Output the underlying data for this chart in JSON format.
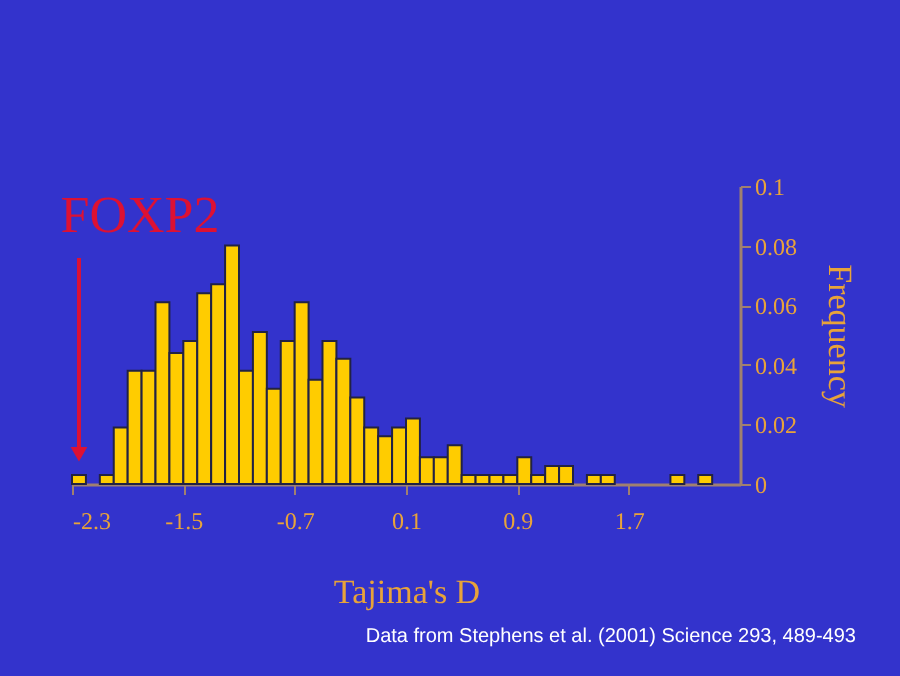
{
  "chart_data": {
    "type": "histogram",
    "bins": [
      -2.3,
      -2.2,
      -2.1,
      -2.0,
      -1.9,
      -1.8,
      -1.7,
      -1.6,
      -1.5,
      -1.4,
      -1.3,
      -1.2,
      -1.1,
      -1.0,
      -0.9,
      -0.8,
      -0.7,
      -0.6,
      -0.5,
      -0.4,
      -0.3,
      -0.2,
      -0.1,
      0.0,
      0.1,
      0.2,
      0.3,
      0.4,
      0.5,
      0.6,
      0.7,
      0.8,
      0.9,
      1.0,
      1.1,
      1.2,
      1.3,
      1.4,
      1.5,
      1.6,
      1.7,
      1.8,
      1.9,
      2.0,
      2.1,
      2.2,
      2.3
    ],
    "values": [
      0.003,
      0,
      0.003,
      0.019,
      0.038,
      0.038,
      0.061,
      0.044,
      0.048,
      0.064,
      0.067,
      0.08,
      0.038,
      0.051,
      0.032,
      0.048,
      0.061,
      0.035,
      0.048,
      0.042,
      0.029,
      0.019,
      0.016,
      0.019,
      0.022,
      0.009,
      0.009,
      0.013,
      0.003,
      0.003,
      0.003,
      0.003,
      0.009,
      0.003,
      0.006,
      0.006,
      0,
      0.003,
      0.003,
      0,
      0,
      0,
      0,
      0.003,
      0,
      0.003
    ],
    "color": "#ffcc00",
    "xlabel": "Tajima's D",
    "ylabel": "Frequency",
    "xlim": [
      -2.3,
      2.5
    ],
    "xticks": [
      -2.3,
      -1.5,
      -0.7,
      0.1,
      0.9,
      1.7
    ],
    "ylim": [
      0,
      0.1
    ],
    "yticks": [
      0,
      0.02,
      0.04,
      0.06,
      0.08,
      0.1
    ],
    "grid": false,
    "annotations": [
      {
        "text": "FOXP2",
        "x": -2.25,
        "y": 0.01
      },
      "Data from Stephens et al. (2001) Science 293, 489-493"
    ]
  }
}
